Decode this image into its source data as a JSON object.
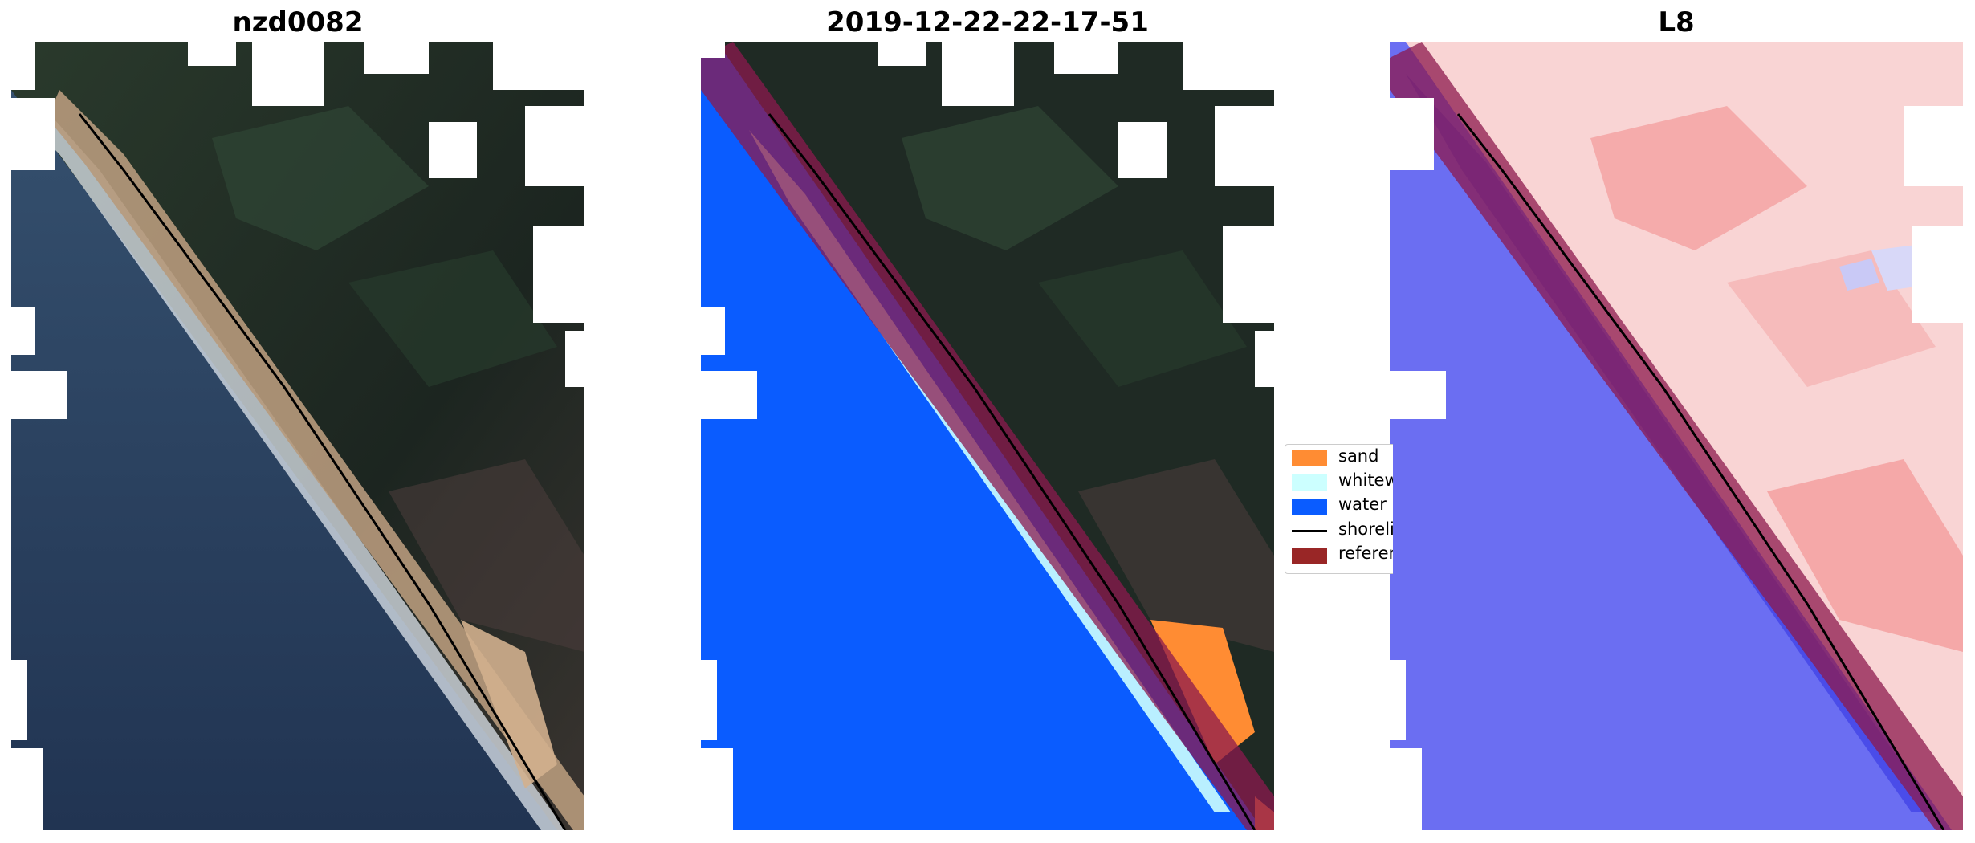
{
  "panels": [
    {
      "title": "nzd0082"
    },
    {
      "title": "2019-12-22-22-17-51"
    },
    {
      "title": "L8"
    }
  ],
  "legend": {
    "items": [
      {
        "label": "sand",
        "color": "#ff8c33"
      },
      {
        "label": "whitewater",
        "color": "#ccffff"
      },
      {
        "label": "water",
        "color": "#0a5cff"
      },
      {
        "label": "shoreline",
        "color": "#000000"
      },
      {
        "label": "reference",
        "color": "#992626"
      }
    ]
  },
  "colors": {
    "ocean_rgb": "#2b3f5c",
    "land_rgb": "#1f2a24",
    "beach_rgb": "#c9a98a",
    "surf_rgb": "#e9eef2",
    "index_water": "#6a6cf0",
    "index_land": "#f7c8c8",
    "cloud_mask": "#ffffff",
    "reference_buffer": "#8c1a4d"
  }
}
